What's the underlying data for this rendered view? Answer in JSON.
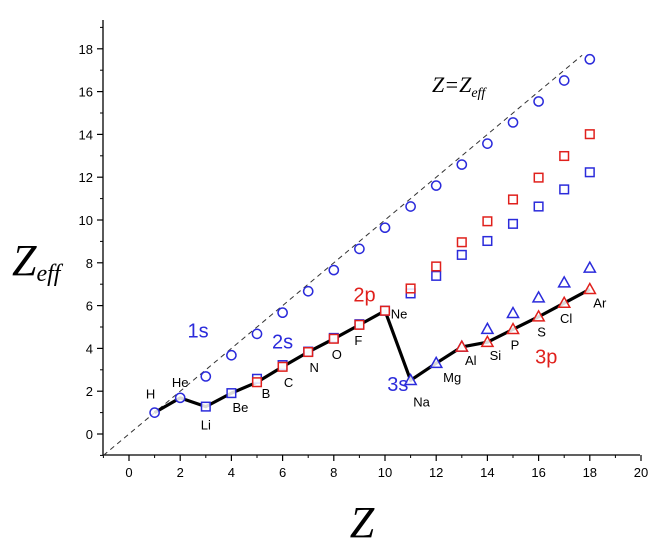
{
  "chart_data": {
    "type": "scatter",
    "xlabel_main": "Z",
    "ylabel_main": "Z",
    "ylabel_sub": "eff",
    "xlim": [
      -1,
      20
    ],
    "ylim": [
      -1,
      19
    ],
    "x_ticks": [
      0,
      2,
      4,
      6,
      8,
      10,
      12,
      14,
      16,
      18,
      20
    ],
    "y_ticks": [
      0,
      2,
      4,
      6,
      8,
      10,
      12,
      14,
      16,
      18
    ],
    "diagonal_label_main": "Z=Z",
    "diagonal_label_sub": "eff",
    "colors": {
      "blue": "#2b2bdb",
      "red": "#e0201c",
      "line": "#000000",
      "dash": "#333333"
    },
    "series": [
      {
        "marker": "circle",
        "color": "blue",
        "x": [
          1,
          2,
          3,
          4,
          5,
          6,
          7,
          8,
          9,
          10,
          11,
          12,
          13,
          14,
          15,
          16,
          17,
          18
        ],
        "y": [
          1.0,
          1.69,
          2.69,
          3.68,
          4.68,
          5.67,
          6.67,
          7.66,
          8.65,
          9.64,
          10.63,
          11.61,
          12.59,
          13.57,
          14.56,
          15.54,
          16.52,
          17.51
        ]
      },
      {
        "marker": "square",
        "color": "blue",
        "x": [
          3,
          4,
          5,
          6,
          7,
          8,
          9,
          10,
          11,
          12,
          13,
          14,
          15,
          16,
          17,
          18
        ],
        "y": [
          1.28,
          1.91,
          2.58,
          3.22,
          3.85,
          4.49,
          5.13,
          5.76,
          6.57,
          7.39,
          8.37,
          9.02,
          9.82,
          10.63,
          11.43,
          12.23
        ]
      },
      {
        "marker": "square",
        "color": "red",
        "x": [
          5,
          6,
          7,
          8,
          9,
          10,
          11,
          12,
          13,
          14,
          15,
          16,
          17,
          18
        ],
        "y": [
          2.42,
          3.14,
          3.83,
          4.45,
          5.1,
          5.76,
          6.8,
          7.83,
          8.96,
          9.94,
          10.96,
          11.98,
          12.99,
          14.01
        ]
      },
      {
        "marker": "triangle",
        "color": "blue",
        "x": [
          11,
          12,
          13,
          14,
          15,
          16,
          17,
          18
        ],
        "y": [
          2.51,
          3.31,
          4.07,
          4.9,
          5.64,
          6.37,
          7.07,
          7.76
        ]
      },
      {
        "marker": "triangle",
        "color": "red",
        "x": [
          13,
          14,
          15,
          16,
          17,
          18
        ],
        "y": [
          4.07,
          4.29,
          4.89,
          5.48,
          6.12,
          6.76
        ]
      }
    ],
    "valence_line": {
      "x": [
        1,
        2,
        3,
        4,
        5,
        6,
        7,
        8,
        9,
        10,
        11,
        12,
        13,
        14,
        15,
        16,
        17,
        18
      ],
      "y": [
        1.0,
        1.69,
        1.28,
        1.91,
        2.42,
        3.14,
        3.83,
        4.45,
        5.1,
        5.76,
        2.51,
        3.31,
        4.07,
        4.29,
        4.89,
        5.48,
        6.12,
        6.76
      ]
    },
    "element_labels": [
      {
        "text": "H",
        "x": 1,
        "y": 1.0
      },
      {
        "text": "He",
        "x": 2,
        "y": 1.69
      },
      {
        "text": "Li",
        "x": 3,
        "y": 1.28
      },
      {
        "text": "Be",
        "x": 4,
        "y": 1.91
      },
      {
        "text": "B",
        "x": 5,
        "y": 2.42
      },
      {
        "text": "C",
        "x": 6,
        "y": 3.14
      },
      {
        "text": "N",
        "x": 7,
        "y": 3.83
      },
      {
        "text": "O",
        "x": 8,
        "y": 4.45
      },
      {
        "text": "F",
        "x": 9,
        "y": 5.1
      },
      {
        "text": "Ne",
        "x": 10,
        "y": 5.76
      },
      {
        "text": "Na",
        "x": 11,
        "y": 2.51
      },
      {
        "text": "Mg",
        "x": 12,
        "y": 3.31
      },
      {
        "text": "Al",
        "x": 13,
        "y": 4.07
      },
      {
        "text": "Si",
        "x": 14,
        "y": 4.29
      },
      {
        "text": "P",
        "x": 15,
        "y": 4.89
      },
      {
        "text": "S",
        "x": 16,
        "y": 5.48
      },
      {
        "text": "Cl",
        "x": 17,
        "y": 6.12
      },
      {
        "text": "Ar",
        "x": 18,
        "y": 6.76
      }
    ],
    "orbital_labels": [
      {
        "text": "1s",
        "color": "blue",
        "x": 2.7,
        "y": 4.5
      },
      {
        "text": "2s",
        "color": "blue",
        "x": 6.0,
        "y": 4.0
      },
      {
        "text": "2p",
        "color": "red",
        "x": 9.2,
        "y": 6.2
      },
      {
        "text": "3s",
        "color": "blue",
        "x": 10.5,
        "y": 2.0
      },
      {
        "text": "3p",
        "color": "red",
        "x": 16.3,
        "y": 3.3
      }
    ]
  }
}
